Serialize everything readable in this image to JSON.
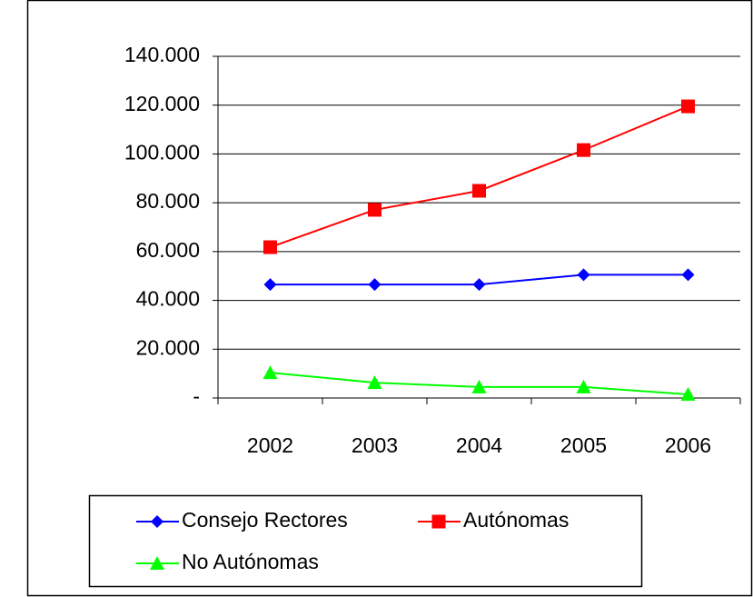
{
  "chart_data": {
    "type": "line",
    "categories": [
      "2002",
      "2003",
      "2004",
      "2005",
      "2006"
    ],
    "series": [
      {
        "name": "Consejo Rectores",
        "color": "#0000ff",
        "marker": "diamond",
        "values": [
          46500,
          46500,
          46500,
          50500,
          50500
        ]
      },
      {
        "name": "Autónomas",
        "color": "#ff0000",
        "marker": "square",
        "values": [
          61800,
          77100,
          84900,
          101600,
          119500
        ]
      },
      {
        "name": "No Autónomas",
        "color": "#00ff00",
        "marker": "triangle",
        "values": [
          10400,
          6300,
          4500,
          4500,
          1500
        ]
      }
    ],
    "ylim": [
      0,
      140000
    ],
    "yticks": [
      {
        "value": 0,
        "label": "-"
      },
      {
        "value": 20000,
        "label": "20.000"
      },
      {
        "value": 40000,
        "label": "40.000"
      },
      {
        "value": 60000,
        "label": "60.000"
      },
      {
        "value": 80000,
        "label": "80.000"
      },
      {
        "value": 100000,
        "label": "100.000"
      },
      {
        "value": 120000,
        "label": "120.000"
      },
      {
        "value": 140000,
        "label": "140.000"
      }
    ],
    "grid": true,
    "legend": "bottom"
  }
}
